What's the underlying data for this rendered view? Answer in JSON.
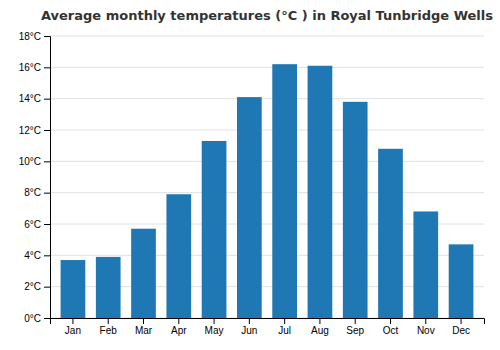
{
  "chart_data": {
    "type": "bar",
    "title": "Average monthly temperatures (°C ) in Royal Tunbridge Wells",
    "categories": [
      "Jan",
      "Feb",
      "Mar",
      "Apr",
      "May",
      "Jun",
      "Jul",
      "Aug",
      "Sep",
      "Oct",
      "Nov",
      "Dec"
    ],
    "values": [
      3.7,
      3.9,
      5.7,
      7.9,
      11.3,
      14.1,
      16.2,
      16.1,
      13.8,
      10.8,
      6.8,
      4.7
    ],
    "ylim": [
      0,
      18
    ],
    "yticks": [
      {
        "value": 0,
        "label": "0°C"
      },
      {
        "value": 2,
        "label": "2°C"
      },
      {
        "value": 4,
        "label": "4°C"
      },
      {
        "value": 6,
        "label": "6°C"
      },
      {
        "value": 8,
        "label": "8°C"
      },
      {
        "value": 10,
        "label": "10°C"
      },
      {
        "value": 12,
        "label": "12°C"
      },
      {
        "value": 14,
        "label": "14°C"
      },
      {
        "value": 16,
        "label": "16°C"
      },
      {
        "value": 18,
        "label": "18°C"
      }
    ],
    "grid": true
  }
}
